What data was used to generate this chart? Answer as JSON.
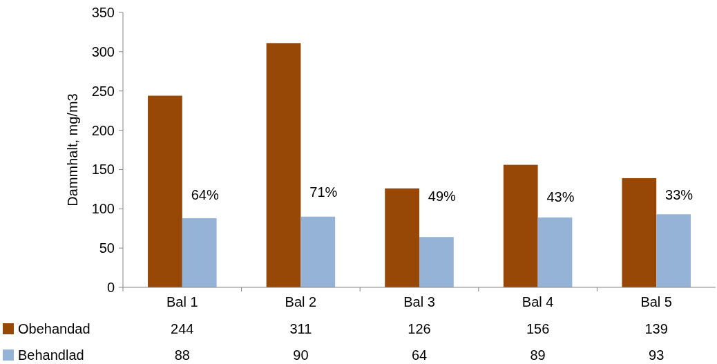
{
  "chart_data": {
    "type": "bar",
    "ylabel": "Dammhalt, mg/m3",
    "categories": [
      "Bal 1",
      "Bal 2",
      "Bal 3",
      "Bal 4",
      "Bal 5"
    ],
    "series": [
      {
        "name": "Obehandad",
        "color": "#974706",
        "values": [
          244,
          311,
          126,
          156,
          139
        ]
      },
      {
        "name": "Behandlad",
        "color": "#95b3d7",
        "values": [
          88,
          90,
          64,
          89,
          93
        ]
      }
    ],
    "ylim": [
      0,
      350
    ],
    "yticks": [
      0,
      50,
      100,
      150,
      200,
      250,
      300,
      350
    ],
    "data_labels": true,
    "legend": "bottom",
    "annotations": [
      {
        "text": "64%",
        "x": "Bal 1",
        "y": 118
      },
      {
        "text": "71%",
        "x": "Bal 2",
        "y": 121
      },
      {
        "text": "49%",
        "x": "Bal 3",
        "y": 116
      },
      {
        "text": "43%",
        "x": "Bal 4",
        "y": 115
      },
      {
        "text": "33%",
        "x": "Bal 5",
        "y": 118
      }
    ]
  }
}
